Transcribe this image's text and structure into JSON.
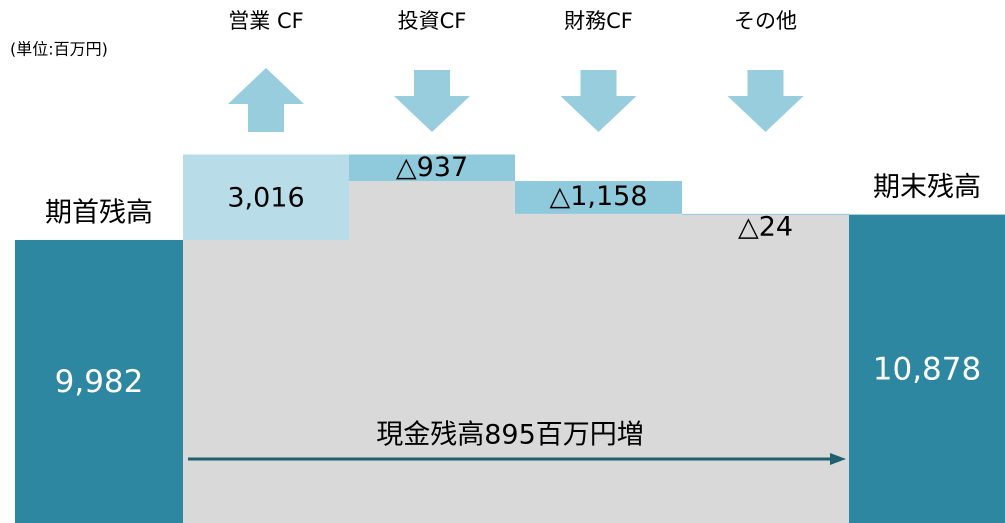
{
  "chart_data": {
    "type": "waterfall",
    "unit": "(単位:百万円)",
    "categories": [
      "期首残高",
      "営業 CF",
      "投資CF",
      "財務CF",
      "その他",
      "期末残高"
    ],
    "values": [
      9982,
      3016,
      -937,
      -1158,
      -24,
      10878
    ],
    "value_labels": [
      "9,982",
      "3,016",
      "△937",
      "△1,158",
      "△24",
      "10,878"
    ],
    "colors": {
      "total": "#2e87a0",
      "increase": "#b8dde8",
      "decrease": "#8ecadb",
      "arrow": "#98cddd",
      "base": "#d9d9d9"
    },
    "annotation": "現金残高895百万円増"
  }
}
